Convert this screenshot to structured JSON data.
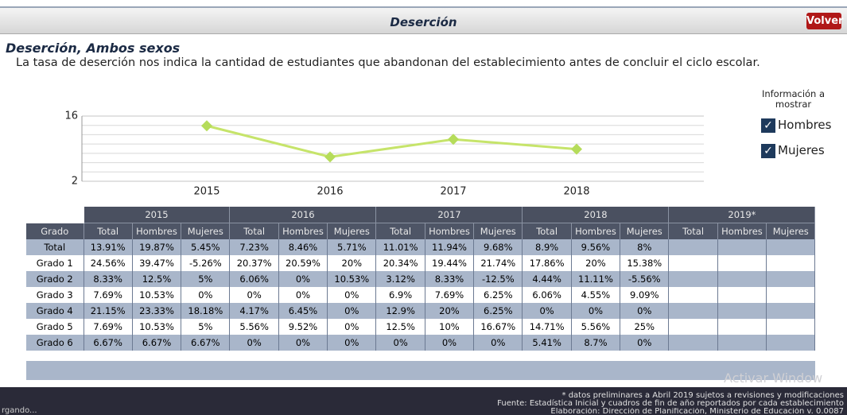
{
  "header": {
    "title": "Deserción",
    "button": "Volver"
  },
  "section": {
    "title": "Deserción, Ambos sexos",
    "description": "La tasa de deserción nos indica la cantidad de estudiantes que abandonan del establecimiento antes de concluir el ciclo escolar."
  },
  "chart_data": {
    "type": "line",
    "categories": [
      "2015",
      "2016",
      "2017",
      "2018"
    ],
    "values": [
      13.91,
      7.23,
      11.01,
      8.9
    ],
    "color": "#c6e46a",
    "marker_color": "#b5dc5a",
    "ylim": [
      2,
      16
    ],
    "yticks": [
      2,
      16
    ],
    "minor_yticks": [
      4,
      6,
      8,
      10,
      12,
      14
    ],
    "grid": true
  },
  "legend": {
    "title": "Información a mostrar",
    "items": [
      "Hombres",
      "Mujeres"
    ]
  },
  "table": {
    "first_header": "Grado",
    "years": [
      {
        "year": "2015",
        "columns": [
          "Total",
          "Hombres",
          "Mujeres"
        ]
      },
      {
        "year": "2016",
        "columns": [
          "Total",
          "Hombres",
          "Mujeres"
        ]
      },
      {
        "year": "2017",
        "columns": [
          "Total",
          "Hombres",
          "Mujeres"
        ]
      },
      {
        "year": "2018",
        "columns": [
          "Total",
          "Hombres",
          "Mujeres"
        ]
      },
      {
        "year": "2019*",
        "columns": [
          "Total",
          "Hombres",
          "Mujeres"
        ]
      }
    ],
    "rows": [
      {
        "grado": "Total",
        "cells": [
          "13.91%",
          "19.87%",
          "5.45%",
          "7.23%",
          "8.46%",
          "5.71%",
          "11.01%",
          "11.94%",
          "9.68%",
          "8.9%",
          "9.56%",
          "8%"
        ]
      },
      {
        "grado": "Grado 1",
        "cells": [
          "24.56%",
          "39.47%",
          "-5.26%",
          "20.37%",
          "20.59%",
          "20%",
          "20.34%",
          "19.44%",
          "21.74%",
          "17.86%",
          "20%",
          "15.38%"
        ]
      },
      {
        "grado": "Grado 2",
        "cells": [
          "8.33%",
          "12.5%",
          "5%",
          "6.06%",
          "0%",
          "10.53%",
          "3.12%",
          "8.33%",
          "-12.5%",
          "4.44%",
          "11.11%",
          "-5.56%"
        ]
      },
      {
        "grado": "Grado 3",
        "cells": [
          "7.69%",
          "10.53%",
          "0%",
          "0%",
          "0%",
          "0%",
          "6.9%",
          "7.69%",
          "6.25%",
          "6.06%",
          "4.55%",
          "9.09%"
        ]
      },
      {
        "grado": "Grado 4",
        "cells": [
          "21.15%",
          "23.33%",
          "18.18%",
          "4.17%",
          "6.45%",
          "0%",
          "12.9%",
          "20%",
          "6.25%",
          "0%",
          "0%",
          "0%"
        ]
      },
      {
        "grado": "Grado 5",
        "cells": [
          "7.69%",
          "10.53%",
          "5%",
          "5.56%",
          "9.52%",
          "0%",
          "12.5%",
          "10%",
          "16.67%",
          "14.71%",
          "5.56%",
          "25%"
        ]
      },
      {
        "grado": "Grado 6",
        "cells": [
          "6.67%",
          "6.67%",
          "6.67%",
          "0%",
          "0%",
          "0%",
          "0%",
          "0%",
          "0%",
          "5.41%",
          "8.7%",
          "0%"
        ]
      }
    ]
  },
  "footer": {
    "lines": [
      "* datos preliminares a Abril 2019 sujetos a revisiones y modificaciones",
      "Fuente: Estadística Inicial y cuadros de fin de año reportados por cada establecimiento",
      "Elaboración: Dirección de Planificación, Ministerio de Educación v. 0.0087"
    ],
    "status": "rgando...",
    "watermark": "Activar Window"
  }
}
